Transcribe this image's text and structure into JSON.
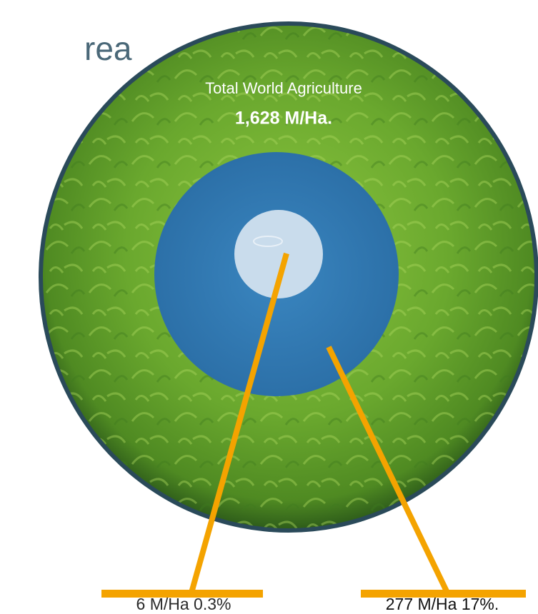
{
  "header": {
    "title": "rea"
  },
  "diagram": {
    "outer": {
      "label": "Total World Agriculture",
      "value": "1,628 M/Ha."
    },
    "callouts": [
      {
        "label": "6 M/Ha 0.3%"
      },
      {
        "label": "277 M/Ha 17%."
      }
    ]
  }
}
